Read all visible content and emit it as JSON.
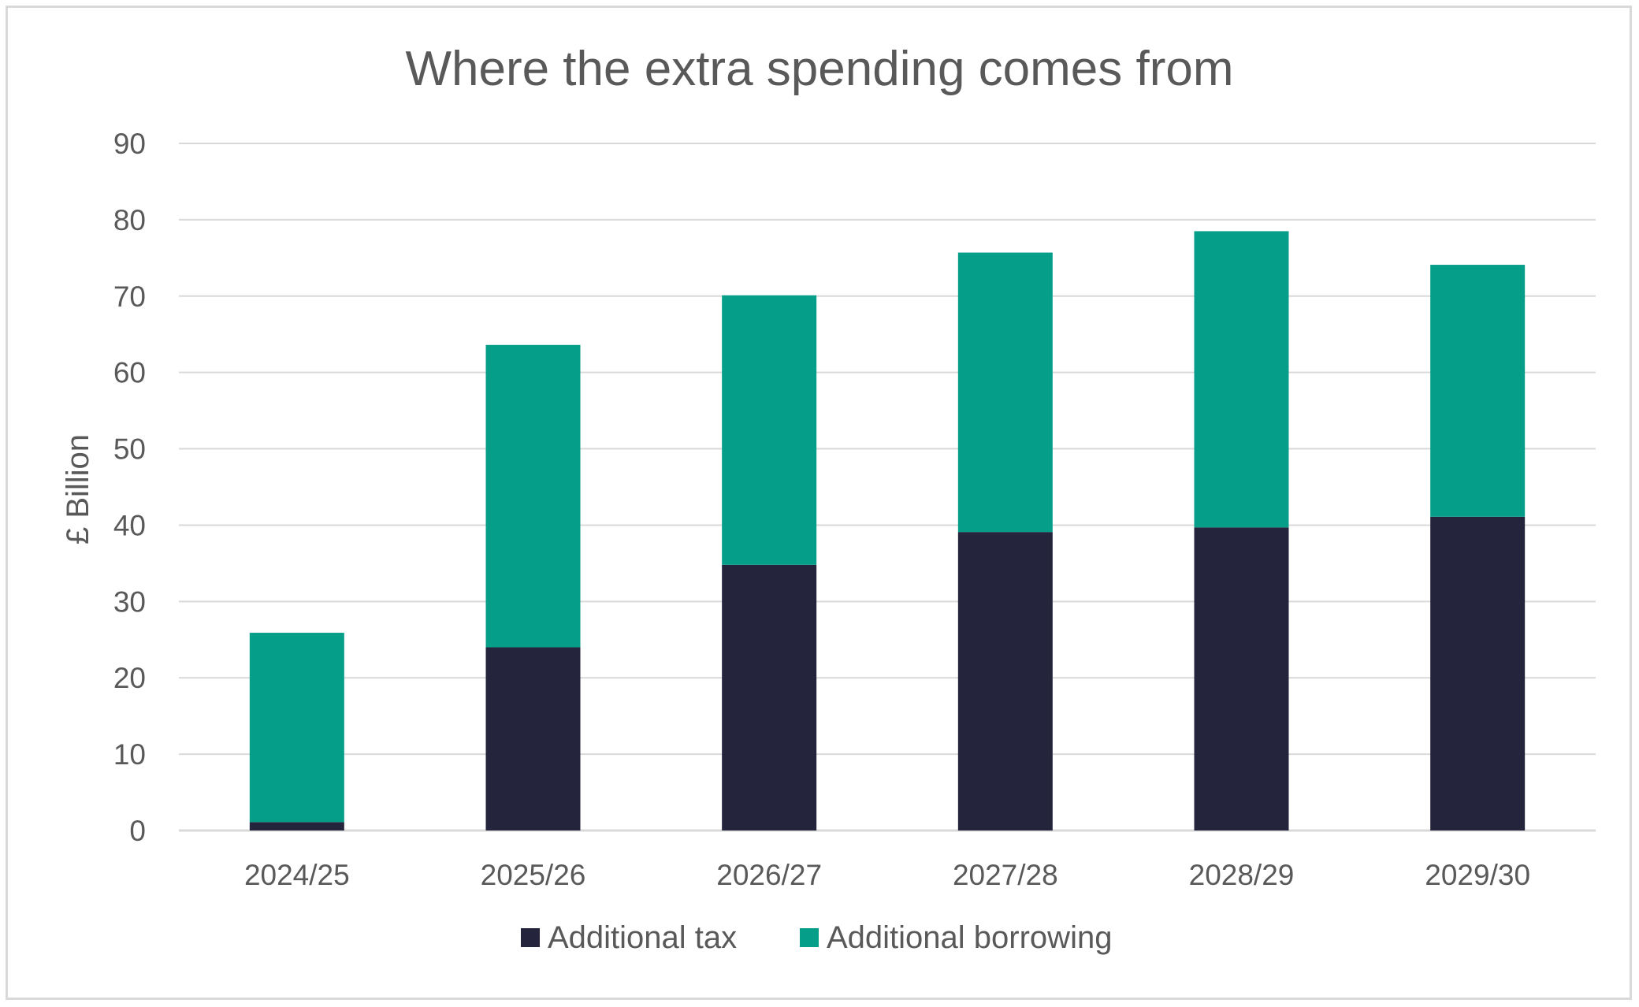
{
  "chart_data": {
    "type": "bar",
    "stacked": true,
    "title": "Where the extra spending comes from",
    "xlabel": "",
    "ylabel": "£ Billion",
    "ylim": [
      0,
      90
    ],
    "yticks": [
      0,
      10,
      20,
      30,
      40,
      50,
      60,
      70,
      80,
      90
    ],
    "categories": [
      "2024/25",
      "2025/26",
      "2026/27",
      "2027/28",
      "2028/29",
      "2029/30"
    ],
    "series": [
      {
        "name": "Additional tax",
        "color": "#24243d",
        "values": [
          1.1,
          24.0,
          34.8,
          39.1,
          39.7,
          41.1
        ]
      },
      {
        "name": "Additional borrowing",
        "color": "#059e88",
        "values": [
          24.8,
          39.6,
          35.3,
          36.6,
          38.8,
          33.0
        ]
      }
    ],
    "grid": true,
    "legend_position": "bottom"
  }
}
